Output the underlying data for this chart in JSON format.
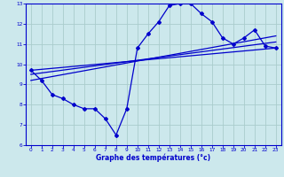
{
  "xlabel": "Graphe des températures (°c)",
  "ylabel": "",
  "bg_color": "#cce8ec",
  "grid_color": "#aacccc",
  "line_color": "#0000cc",
  "xlim": [
    -0.5,
    23.5
  ],
  "ylim": [
    6,
    13
  ],
  "xticks": [
    0,
    1,
    2,
    3,
    4,
    5,
    6,
    7,
    8,
    9,
    10,
    11,
    12,
    13,
    14,
    15,
    16,
    17,
    18,
    19,
    20,
    21,
    22,
    23
  ],
  "yticks": [
    6,
    7,
    8,
    9,
    10,
    11,
    12,
    13
  ],
  "main_x": [
    0,
    1,
    2,
    3,
    4,
    5,
    6,
    7,
    8,
    9,
    10,
    11,
    12,
    13,
    14,
    15,
    16,
    17,
    18,
    19,
    20,
    21,
    22,
    23
  ],
  "main_y": [
    9.7,
    9.2,
    8.5,
    8.3,
    8.0,
    7.8,
    7.8,
    7.3,
    6.5,
    7.8,
    10.8,
    11.5,
    12.1,
    12.9,
    13.0,
    13.0,
    12.5,
    12.1,
    11.3,
    11.0,
    11.3,
    11.7,
    10.9,
    10.8
  ],
  "line1_x": [
    0,
    23
  ],
  "line1_y": [
    9.7,
    10.8
  ],
  "line2_x": [
    0,
    23
  ],
  "line2_y": [
    9.5,
    11.1
  ],
  "line3_x": [
    0,
    23
  ],
  "line3_y": [
    9.2,
    11.4
  ]
}
